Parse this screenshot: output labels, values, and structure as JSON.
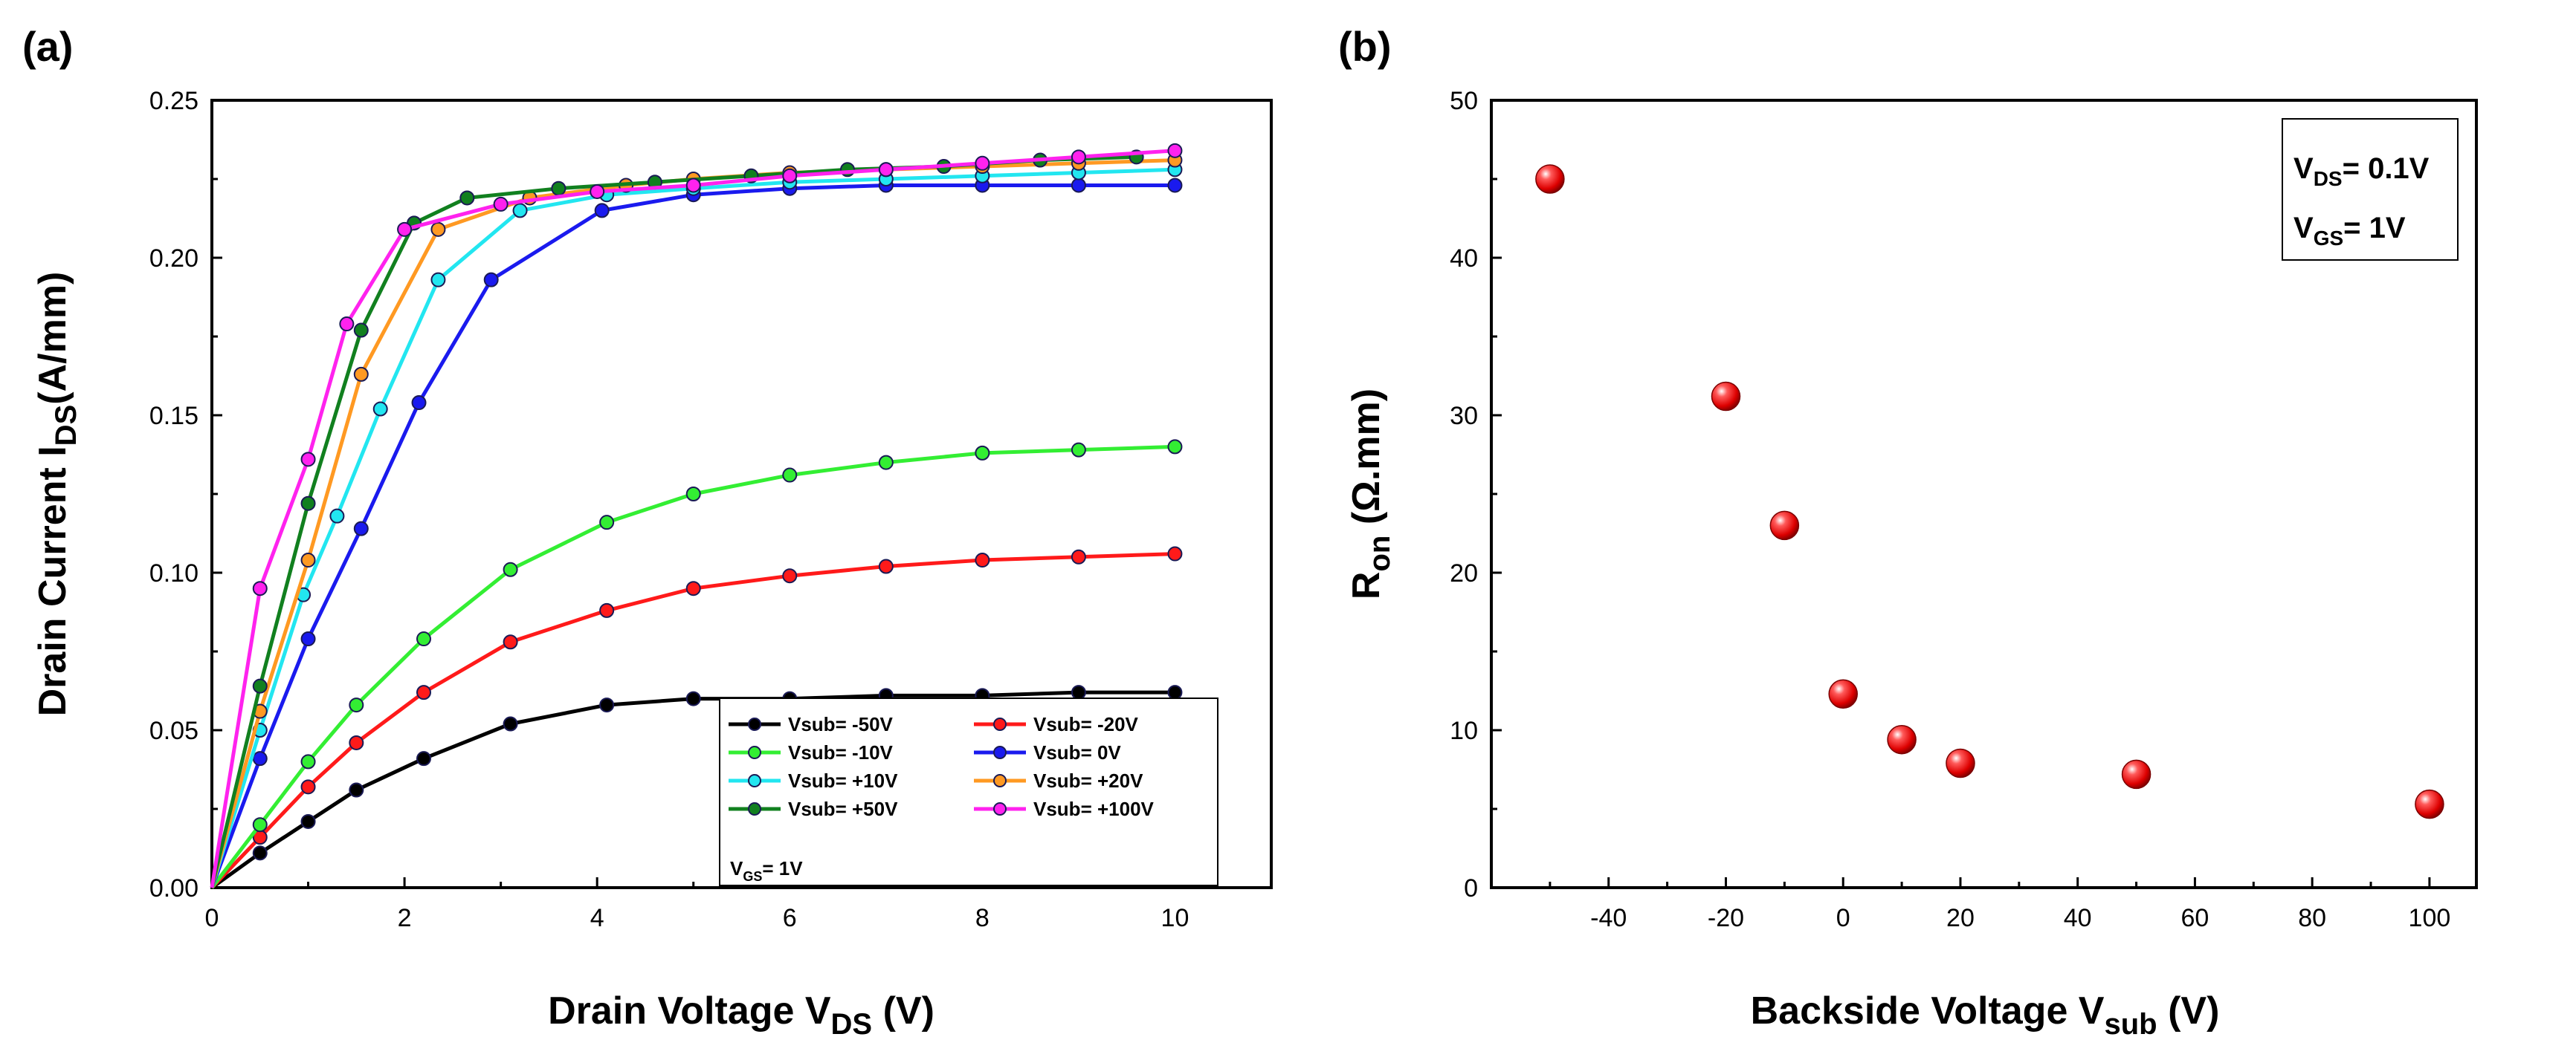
{
  "chart_data": [
    {
      "type": "line",
      "panel_label": "(a)",
      "xlabel": {
        "main": "Drain Voltage V",
        "sub": "DS",
        "unit": " (V)"
      },
      "ylabel": {
        "main": "Drain Current I",
        "sub": "DS",
        "unit": "(A/mm)"
      },
      "xlim": [
        0,
        11
      ],
      "ylim": [
        0,
        0.25
      ],
      "xticks": [
        "0",
        "2",
        "4",
        "6",
        "8",
        "10"
      ],
      "yticks": [
        "0.00",
        "0.05",
        "0.10",
        "0.15",
        "0.20",
        "0.25"
      ],
      "legend_position": "bottom-right",
      "annotation": {
        "main": "V",
        "sub": "GS",
        "rest": "= 1V"
      },
      "series": [
        {
          "name": "Vsub= -50V",
          "color": "#000000",
          "x": [
            0,
            0.5,
            1,
            1.5,
            2.2,
            3.1,
            4.1,
            5,
            6,
            7,
            8,
            9,
            10
          ],
          "y": [
            0,
            0.011,
            0.021,
            0.031,
            0.041,
            0.052,
            0.058,
            0.06,
            0.06,
            0.061,
            0.061,
            0.062,
            0.062
          ]
        },
        {
          "name": "Vsub= -20V",
          "color": "#ff1a1a",
          "x": [
            0,
            0.5,
            1,
            1.5,
            2.2,
            3.1,
            4.1,
            5,
            6,
            7,
            8,
            9,
            10
          ],
          "y": [
            0,
            0.016,
            0.032,
            0.046,
            0.062,
            0.078,
            0.088,
            0.095,
            0.099,
            0.102,
            0.104,
            0.105,
            0.106
          ]
        },
        {
          "name": "Vsub= -10V",
          "color": "#33ee33",
          "x": [
            0,
            0.5,
            1,
            1.5,
            2.2,
            3.1,
            4.1,
            5,
            6,
            7,
            8,
            9,
            10
          ],
          "y": [
            0,
            0.02,
            0.04,
            0.058,
            0.079,
            0.101,
            0.116,
            0.125,
            0.131,
            0.135,
            0.138,
            0.139,
            0.14
          ]
        },
        {
          "name": "Vsub=  0V",
          "color": "#1a1aee",
          "x": [
            0,
            0.5,
            1,
            1.55,
            2.15,
            2.9,
            4.05,
            5,
            6,
            7,
            8,
            9,
            10
          ],
          "y": [
            0,
            0.041,
            0.079,
            0.114,
            0.154,
            0.193,
            0.215,
            0.22,
            0.222,
            0.223,
            0.223,
            0.223,
            0.223
          ]
        },
        {
          "name": "Vsub= +10V",
          "color": "#22e6f0",
          "x": [
            0,
            0.5,
            0.95,
            1.3,
            1.75,
            2.35,
            3.2,
            4.1,
            5,
            6,
            7,
            8,
            9,
            10
          ],
          "y": [
            0,
            0.05,
            0.093,
            0.118,
            0.152,
            0.193,
            0.215,
            0.22,
            0.222,
            0.224,
            0.225,
            0.226,
            0.227,
            0.228
          ]
        },
        {
          "name": "Vsub= +20V",
          "color": "#ff9922",
          "x": [
            0,
            0.5,
            1,
            1.55,
            2.35,
            3.3,
            4.3,
            5,
            6,
            7,
            8,
            9,
            10
          ],
          "y": [
            0,
            0.056,
            0.104,
            0.163,
            0.209,
            0.219,
            0.223,
            0.225,
            0.227,
            0.228,
            0.229,
            0.23,
            0.231
          ]
        },
        {
          "name": "Vsub= +50V",
          "color": "#11801f",
          "x": [
            0,
            0.5,
            1,
            1.55,
            2.1,
            2.65,
            3.6,
            4.6,
            5.6,
            6.6,
            7.6,
            8.6,
            9.6
          ],
          "y": [
            0,
            0.064,
            0.122,
            0.177,
            0.211,
            0.219,
            0.222,
            0.224,
            0.226,
            0.228,
            0.229,
            0.231,
            0.232
          ]
        },
        {
          "name": "Vsub= +100V",
          "color": "#ff22ee",
          "x": [
            0,
            0.5,
            1,
            1.4,
            2,
            3,
            4,
            5,
            6,
            7,
            8,
            9,
            10
          ],
          "y": [
            0,
            0.095,
            0.136,
            0.179,
            0.209,
            0.217,
            0.221,
            0.223,
            0.226,
            0.228,
            0.23,
            0.232,
            0.234
          ]
        }
      ]
    },
    {
      "type": "scatter",
      "panel_label": "(b)",
      "xlabel": {
        "main": "Backside Voltage V",
        "sub": "sub",
        "unit": " (V)"
      },
      "ylabel": {
        "main": "R",
        "sub": "on",
        "unit": " (Ω.mm)"
      },
      "xlim": [
        -60,
        108
      ],
      "ylim": [
        0,
        50
      ],
      "xticks": [
        "-40",
        "-20",
        "0",
        "20",
        "40",
        "60",
        "80",
        "100"
      ],
      "yticks": [
        "0",
        "10",
        "20",
        "30",
        "40",
        "50"
      ],
      "annotation": [
        {
          "main": "V",
          "sub": "DS",
          "rest": "= 0.1V"
        },
        {
          "main": "V",
          "sub": "GS",
          "rest": "= 1V"
        }
      ],
      "color": "#ee1111",
      "x": [
        -50,
        -20,
        -10,
        0,
        10,
        20,
        50,
        100
      ],
      "y": [
        45.0,
        31.2,
        23.0,
        12.3,
        9.4,
        7.9,
        7.2,
        5.3
      ]
    }
  ]
}
